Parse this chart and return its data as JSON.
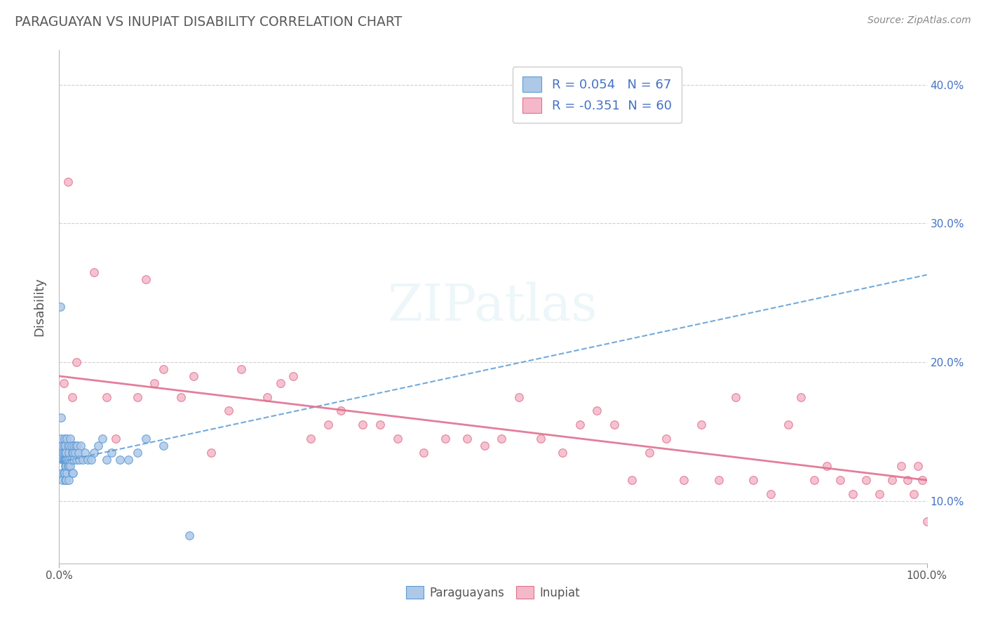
{
  "title": "PARAGUAYAN VS INUPIAT DISABILITY CORRELATION CHART",
  "source": "Source: ZipAtlas.com",
  "ylabel": "Disability",
  "x_min": 0.0,
  "x_max": 1.0,
  "y_min": 0.055,
  "y_max": 0.425,
  "x_ticks": [
    0.0,
    1.0
  ],
  "x_tick_labels": [
    "0.0%",
    "100.0%"
  ],
  "y_ticks": [
    0.1,
    0.2,
    0.3,
    0.4
  ],
  "y_tick_labels": [
    "10.0%",
    "20.0%",
    "30.0%",
    "40.0%"
  ],
  "legend_r1": "R = 0.054",
  "legend_n1": "N = 67",
  "legend_r2": "R = -0.351",
  "legend_n2": "N = 60",
  "blue_fill": "#aec8e8",
  "blue_edge": "#5b9bd5",
  "pink_fill": "#f4b8c8",
  "pink_edge": "#e07090",
  "blue_line_color": "#5b9bd5",
  "pink_line_color": "#e07090",
  "title_color": "#595959",
  "source_color": "#888888",
  "paraguayans_x": [
    0.001,
    0.002,
    0.002,
    0.003,
    0.003,
    0.004,
    0.004,
    0.004,
    0.005,
    0.005,
    0.005,
    0.005,
    0.006,
    0.006,
    0.006,
    0.007,
    0.007,
    0.007,
    0.007,
    0.007,
    0.008,
    0.008,
    0.008,
    0.008,
    0.009,
    0.009,
    0.009,
    0.01,
    0.01,
    0.01,
    0.011,
    0.011,
    0.011,
    0.012,
    0.012,
    0.013,
    0.013,
    0.014,
    0.014,
    0.015,
    0.015,
    0.016,
    0.016,
    0.017,
    0.017,
    0.018,
    0.019,
    0.02,
    0.021,
    0.022,
    0.023,
    0.025,
    0.027,
    0.03,
    0.033,
    0.037,
    0.04,
    0.045,
    0.05,
    0.055,
    0.06,
    0.07,
    0.08,
    0.09,
    0.1,
    0.12,
    0.15
  ],
  "paraguayans_y": [
    0.24,
    0.16,
    0.145,
    0.12,
    0.14,
    0.13,
    0.115,
    0.135,
    0.13,
    0.12,
    0.14,
    0.135,
    0.13,
    0.12,
    0.145,
    0.135,
    0.125,
    0.115,
    0.13,
    0.14,
    0.135,
    0.125,
    0.115,
    0.13,
    0.145,
    0.13,
    0.12,
    0.14,
    0.13,
    0.125,
    0.135,
    0.125,
    0.115,
    0.14,
    0.13,
    0.145,
    0.125,
    0.14,
    0.13,
    0.135,
    0.12,
    0.135,
    0.12,
    0.14,
    0.13,
    0.135,
    0.14,
    0.13,
    0.14,
    0.135,
    0.13,
    0.14,
    0.13,
    0.135,
    0.13,
    0.13,
    0.135,
    0.14,
    0.145,
    0.13,
    0.135,
    0.13,
    0.13,
    0.135,
    0.145,
    0.14,
    0.075
  ],
  "inupiat_x": [
    0.005,
    0.01,
    0.015,
    0.02,
    0.04,
    0.055,
    0.065,
    0.09,
    0.1,
    0.11,
    0.12,
    0.14,
    0.155,
    0.175,
    0.195,
    0.21,
    0.24,
    0.255,
    0.27,
    0.29,
    0.31,
    0.325,
    0.35,
    0.37,
    0.39,
    0.42,
    0.445,
    0.47,
    0.49,
    0.51,
    0.53,
    0.555,
    0.58,
    0.6,
    0.62,
    0.64,
    0.66,
    0.68,
    0.7,
    0.72,
    0.74,
    0.76,
    0.78,
    0.8,
    0.82,
    0.84,
    0.855,
    0.87,
    0.885,
    0.9,
    0.915,
    0.93,
    0.945,
    0.96,
    0.97,
    0.978,
    0.985,
    0.99,
    0.995,
    1.0
  ],
  "inupiat_y": [
    0.185,
    0.33,
    0.175,
    0.2,
    0.265,
    0.175,
    0.145,
    0.175,
    0.26,
    0.185,
    0.195,
    0.175,
    0.19,
    0.135,
    0.165,
    0.195,
    0.175,
    0.185,
    0.19,
    0.145,
    0.155,
    0.165,
    0.155,
    0.155,
    0.145,
    0.135,
    0.145,
    0.145,
    0.14,
    0.145,
    0.175,
    0.145,
    0.135,
    0.155,
    0.165,
    0.155,
    0.115,
    0.135,
    0.145,
    0.115,
    0.155,
    0.115,
    0.175,
    0.115,
    0.105,
    0.155,
    0.175,
    0.115,
    0.125,
    0.115,
    0.105,
    0.115,
    0.105,
    0.115,
    0.125,
    0.115,
    0.105,
    0.125,
    0.115,
    0.085
  ],
  "background_color": "#ffffff",
  "grid_color": "#d0d0d0",
  "watermark_text": "ZIPatlas",
  "marker_size": 70,
  "bottom_legend_labels": [
    "Paraguayans",
    "Inupiat"
  ]
}
